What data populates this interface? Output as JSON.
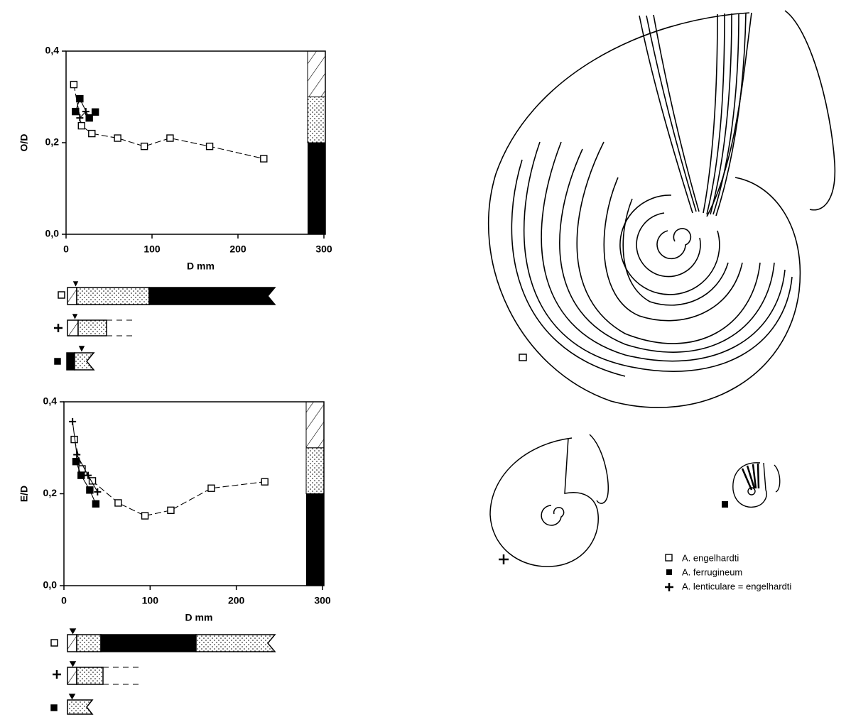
{
  "chart_data": [
    {
      "type": "scatter",
      "ylabel": "O/D",
      "xlabel": "D mm",
      "xlim": [
        0,
        300
      ],
      "ylim": [
        0,
        0.4
      ],
      "xticks": [
        0,
        100,
        200,
        300
      ],
      "yticks": [
        {
          "value": 0,
          "label": "0,0"
        },
        {
          "value": 0.2,
          "label": "0,2"
        },
        {
          "value": 0.4,
          "label": "0,4"
        }
      ],
      "series": [
        {
          "name": "A. engelhardti",
          "color": "#000000",
          "marker": "square-open",
          "line": "dashed",
          "x": [
            9,
            18,
            30,
            60,
            91,
            121,
            167,
            230
          ],
          "values": [
            0.327,
            0.237,
            0.22,
            0.21,
            0.192,
            0.21,
            0.192,
            0.165
          ]
        },
        {
          "name": "A. ferrugineum",
          "color": "#000000",
          "marker": "square-filled",
          "line": "solid",
          "x": [
            11,
            16,
            27,
            34
          ],
          "values": [
            0.268,
            0.296,
            0.254,
            0.267
          ]
        },
        {
          "name": "A. lenticulare = engelhardti",
          "color": "#000000",
          "marker": "plus",
          "line": "solid",
          "x": [
            16,
            23
          ],
          "values": [
            0.254,
            0.268
          ]
        }
      ]
    },
    {
      "type": "scatter",
      "ylabel": "E/D",
      "xlabel": "D mm",
      "xlim": [
        0,
        300
      ],
      "ylim": [
        0,
        0.4
      ],
      "xticks": [
        0,
        100,
        200,
        300
      ],
      "yticks": [
        {
          "value": 0,
          "label": "0,0"
        },
        {
          "value": 0.2,
          "label": "0,2"
        },
        {
          "value": 0.4,
          "label": "0,4"
        }
      ],
      "series": [
        {
          "color": "#000000",
          "marker": "square-open",
          "line": "dashed",
          "x": [
            12,
            21,
            33,
            63,
            94,
            124,
            171,
            233
          ],
          "values": [
            0.318,
            0.254,
            0.228,
            0.18,
            0.152,
            0.164,
            0.212,
            0.226
          ]
        },
        {
          "color": "#000000",
          "marker": "square-filled",
          "line": "solid",
          "x": [
            14,
            20,
            30,
            37
          ],
          "values": [
            0.27,
            0.24,
            0.208,
            0.178
          ]
        },
        {
          "color": "#000000",
          "marker": "plus",
          "line": "solid",
          "x": [
            10,
            15,
            28,
            39
          ],
          "values": [
            0.357,
            0.285,
            0.24,
            0.204
          ]
        }
      ]
    }
  ]
}
